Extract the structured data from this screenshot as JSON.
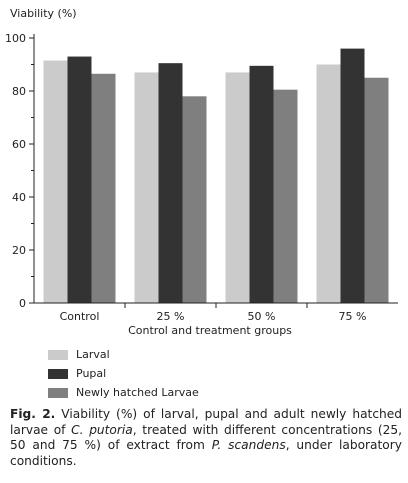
{
  "chart_data": {
    "type": "bar",
    "ylabel": "Viability (%)",
    "xlabel": "Control and treatment groups",
    "categories": [
      "Control",
      "25 %",
      "50 %",
      "75 %"
    ],
    "ylim": [
      0,
      100
    ],
    "yticks": [
      "0",
      "20",
      "40",
      "60",
      "80",
      "100"
    ],
    "series": [
      {
        "name": "Larval",
        "values": [
          91.5,
          87,
          87,
          90
        ],
        "color": "#cbcbcb"
      },
      {
        "name": "Pupal",
        "values": [
          93,
          90.5,
          89.5,
          96
        ],
        "color": "#333333"
      },
      {
        "name": "Newly hatched Larvae",
        "values": [
          86.5,
          78,
          80.5,
          85
        ],
        "color": "#7f7f7f"
      }
    ],
    "grid": false,
    "legend_position": "bottom-left"
  },
  "caption": {
    "fig_label": "Fig. 2.",
    "text_1": " Viability (%) of larval, pupal and adult newly hatched larvae of ",
    "species_1": "C. putoria",
    "text_2": ", treated with different concentrations (25, 50 and 75 %) of extract from ",
    "species_2": "P. scandens",
    "text_3": ", under laboratory conditions."
  }
}
